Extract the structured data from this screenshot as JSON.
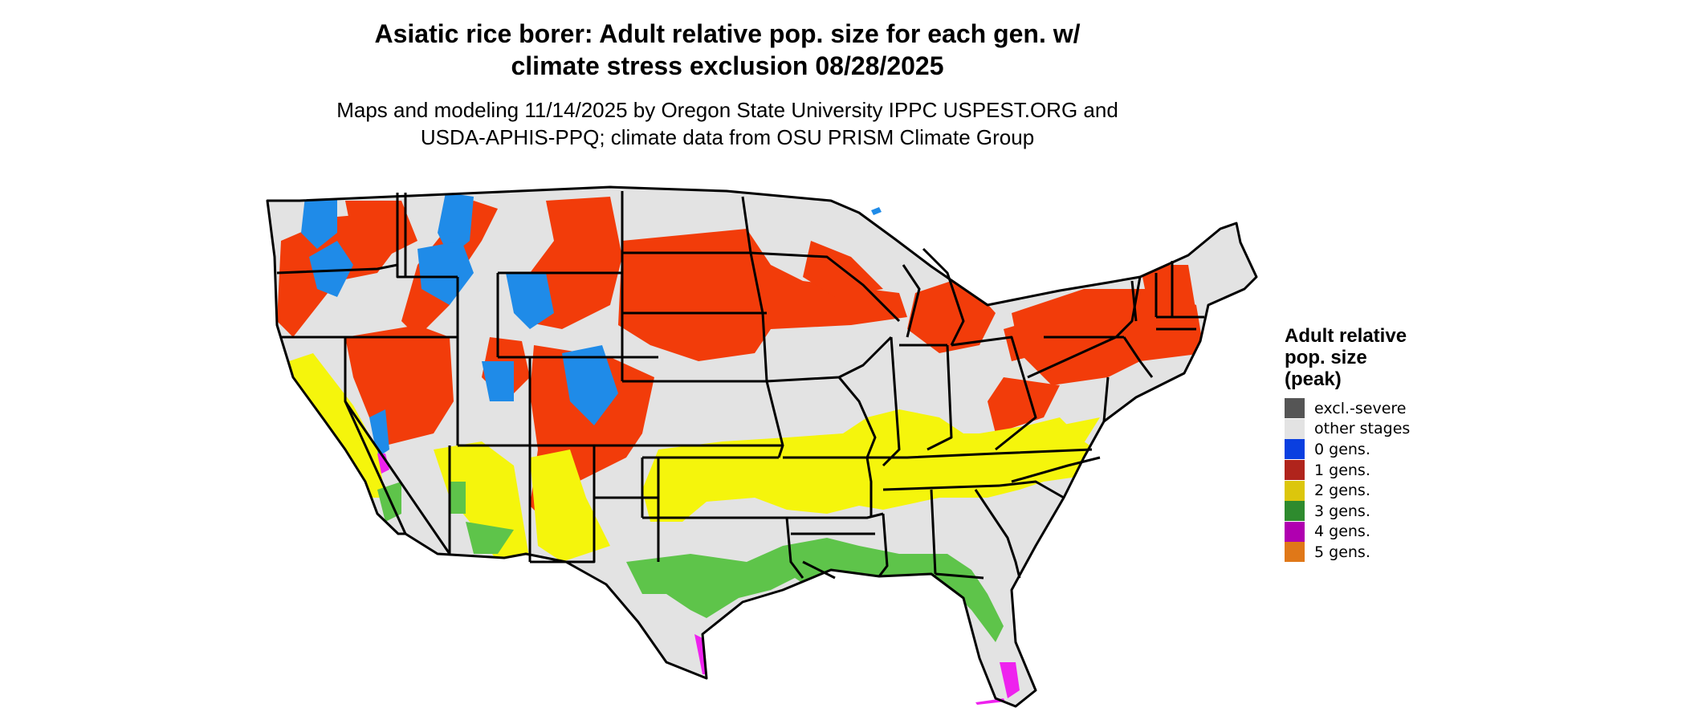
{
  "header": {
    "title_line1": "Asiatic rice borer: Adult relative pop. size for each gen. w/",
    "title_line2": "climate stress exclusion 08/28/2025",
    "subtitle_line1": "Maps and modeling 11/14/2025 by Oregon State University IPPC USPEST.ORG and",
    "subtitle_line2": "USDA-APHIS-PPQ; climate data from OSU PRISM Climate Group"
  },
  "legend": {
    "title_line1": "Adult relative",
    "title_line2": "pop. size",
    "title_line3": "(peak)",
    "items": [
      {
        "label": "excl.-severe",
        "color": "#555555"
      },
      {
        "label": "other stages",
        "color": "#e3e3e3"
      },
      {
        "label": "0 gens.",
        "color": "#0a3fe0"
      },
      {
        "label": "1 gens.",
        "color": "#b0241c"
      },
      {
        "label": "2 gens.",
        "color": "#dcc60c"
      },
      {
        "label": "3 gens.",
        "color": "#2e8b2e"
      },
      {
        "label": "4 gens.",
        "color": "#b000b0"
      },
      {
        "label": "5 gens.",
        "color": "#e07818"
      }
    ]
  },
  "map_colors": {
    "background": "#e3e3e3",
    "blue": "#1f8be8",
    "red": "#f23c0a",
    "yellow": "#f5f50c",
    "green": "#5ec44a",
    "magenta": "#ee22ee",
    "border": "#000000"
  }
}
